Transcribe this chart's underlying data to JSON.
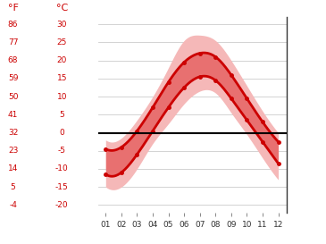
{
  "months": [
    1,
    2,
    3,
    4,
    5,
    6,
    7,
    8,
    9,
    10,
    11,
    12
  ],
  "month_labels": [
    "01",
    "02",
    "03",
    "04",
    "05",
    "06",
    "07",
    "08",
    "09",
    "10",
    "11",
    "12"
  ],
  "avg_high": [
    -4.5,
    -4.0,
    0.5,
    7.0,
    14.0,
    19.5,
    22.0,
    21.0,
    16.0,
    9.5,
    3.0,
    -2.5
  ],
  "avg_low": [
    -11.5,
    -11.0,
    -6.0,
    0.5,
    7.0,
    12.5,
    15.5,
    14.5,
    9.5,
    3.5,
    -2.5,
    -8.5
  ],
  "record_high": [
    -2.0,
    -1.5,
    3.5,
    10.0,
    18.0,
    25.5,
    27.0,
    25.5,
    20.0,
    13.0,
    6.0,
    0.0
  ],
  "record_low": [
    -15.0,
    -15.0,
    -10.0,
    -3.0,
    2.5,
    8.0,
    11.5,
    11.0,
    5.5,
    -0.5,
    -7.0,
    -13.0
  ],
  "line_color": "#cc0000",
  "band_outer_color": "#f5b8b8",
  "band_inner_color": "#e87070",
  "zero_line_color": "#000000",
  "grid_color": "#cccccc",
  "tick_color": "#cc0000",
  "label_color": "#cc0000",
  "celsius_ticks": [
    -20,
    -15,
    -10,
    -5,
    0,
    5,
    10,
    15,
    20,
    25,
    30
  ],
  "fahrenheit_ticks": [
    -4,
    5,
    14,
    23,
    32,
    41,
    50,
    59,
    68,
    77,
    86
  ],
  "ylim": [
    -22,
    32
  ],
  "xlim": [
    0.5,
    12.55
  ],
  "fig_width": 3.65,
  "fig_height": 2.73,
  "dpi": 100
}
